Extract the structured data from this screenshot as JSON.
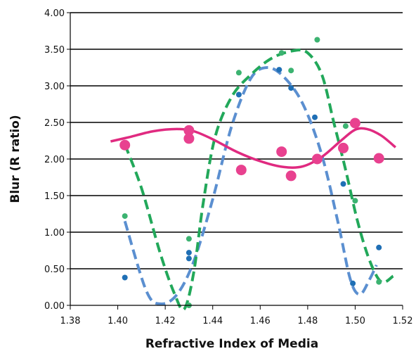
{
  "chart_data": {
    "type": "scatter",
    "xlabel": "Refractive Index of Media",
    "ylabel": "Blur (R ratio)",
    "xlim": [
      1.38,
      1.52
    ],
    "ylim": [
      0.0,
      4.0
    ],
    "x_ticks": [
      "1.38",
      "1.40",
      "1.42",
      "1.44",
      "1.46",
      "1.48",
      "1.50",
      "1.52"
    ],
    "y_ticks": [
      "0.00",
      "0.50",
      "1.00",
      "1.50",
      "2.00",
      "2.50",
      "3.00",
      "3.50",
      "4.00"
    ],
    "grid": "horizontal",
    "legend": "none",
    "series": [
      {
        "color": "#1f6fb5",
        "marker": "small-circle",
        "trendline": "dashed",
        "trend_color": "#5b8fd0",
        "points": [
          {
            "x": 1.403,
            "y": 0.38
          },
          {
            "x": 1.43,
            "y": 0.72
          },
          {
            "x": 1.43,
            "y": 0.64
          },
          {
            "x": 1.451,
            "y": 2.88
          },
          {
            "x": 1.468,
            "y": 3.22
          },
          {
            "x": 1.473,
            "y": 2.97
          },
          {
            "x": 1.483,
            "y": 2.57
          },
          {
            "x": 1.495,
            "y": 1.66
          },
          {
            "x": 1.499,
            "y": 0.3
          },
          {
            "x": 1.51,
            "y": 0.79
          }
        ],
        "trend_points": [
          {
            "x": 1.403,
            "y": 1.15
          },
          {
            "x": 1.412,
            "y": 0.2
          },
          {
            "x": 1.418,
            "y": 0.02
          },
          {
            "x": 1.425,
            "y": 0.15
          },
          {
            "x": 1.432,
            "y": 0.6
          },
          {
            "x": 1.44,
            "y": 1.45
          },
          {
            "x": 1.448,
            "y": 2.45
          },
          {
            "x": 1.456,
            "y": 3.1
          },
          {
            "x": 1.463,
            "y": 3.25
          },
          {
            "x": 1.47,
            "y": 3.12
          },
          {
            "x": 1.478,
            "y": 2.75
          },
          {
            "x": 1.486,
            "y": 2.05
          },
          {
            "x": 1.493,
            "y": 1.1
          },
          {
            "x": 1.498,
            "y": 0.35
          },
          {
            "x": 1.502,
            "y": 0.15
          },
          {
            "x": 1.506,
            "y": 0.35
          },
          {
            "x": 1.509,
            "y": 0.55
          }
        ]
      },
      {
        "color": "#3cb371",
        "marker": "small-circle",
        "trendline": "dashed",
        "trend_color": "#22a85a",
        "points": [
          {
            "x": 1.403,
            "y": 1.22
          },
          {
            "x": 1.43,
            "y": 0.91
          },
          {
            "x": 1.43,
            "y": 0.0
          },
          {
            "x": 1.451,
            "y": 3.18
          },
          {
            "x": 1.469,
            "y": 3.45
          },
          {
            "x": 1.473,
            "y": 3.21
          },
          {
            "x": 1.484,
            "y": 3.63
          },
          {
            "x": 1.496,
            "y": 2.45
          },
          {
            "x": 1.5,
            "y": 1.43
          },
          {
            "x": 1.51,
            "y": 0.32
          }
        ],
        "trend_points": [
          {
            "x": 1.403,
            "y": 2.2
          },
          {
            "x": 1.41,
            "y": 1.6
          },
          {
            "x": 1.418,
            "y": 0.7
          },
          {
            "x": 1.424,
            "y": 0.15
          },
          {
            "x": 1.428,
            "y": -0.05
          },
          {
            "x": 1.432,
            "y": 0.45
          },
          {
            "x": 1.436,
            "y": 1.4
          },
          {
            "x": 1.441,
            "y": 2.3
          },
          {
            "x": 1.448,
            "y": 2.85
          },
          {
            "x": 1.456,
            "y": 3.15
          },
          {
            "x": 1.465,
            "y": 3.38
          },
          {
            "x": 1.474,
            "y": 3.48
          },
          {
            "x": 1.48,
            "y": 3.45
          },
          {
            "x": 1.486,
            "y": 3.15
          },
          {
            "x": 1.491,
            "y": 2.5
          },
          {
            "x": 1.496,
            "y": 1.85
          },
          {
            "x": 1.501,
            "y": 1.15
          },
          {
            "x": 1.506,
            "y": 0.62
          },
          {
            "x": 1.511,
            "y": 0.32
          },
          {
            "x": 1.516,
            "y": 0.4
          }
        ]
      },
      {
        "color": "#e8418f",
        "marker": "large-circle",
        "trendline": "solid",
        "trend_color": "#e02a80",
        "points": [
          {
            "x": 1.403,
            "y": 2.19
          },
          {
            "x": 1.43,
            "y": 2.39
          },
          {
            "x": 1.43,
            "y": 2.28
          },
          {
            "x": 1.452,
            "y": 1.85
          },
          {
            "x": 1.469,
            "y": 2.1
          },
          {
            "x": 1.473,
            "y": 1.77
          },
          {
            "x": 1.484,
            "y": 2.0
          },
          {
            "x": 1.495,
            "y": 2.15
          },
          {
            "x": 1.5,
            "y": 2.49
          },
          {
            "x": 1.51,
            "y": 2.01
          }
        ],
        "trend_points": [
          {
            "x": 1.397,
            "y": 2.24
          },
          {
            "x": 1.405,
            "y": 2.3
          },
          {
            "x": 1.415,
            "y": 2.38
          },
          {
            "x": 1.425,
            "y": 2.41
          },
          {
            "x": 1.432,
            "y": 2.38
          },
          {
            "x": 1.44,
            "y": 2.27
          },
          {
            "x": 1.45,
            "y": 2.1
          },
          {
            "x": 1.46,
            "y": 1.97
          },
          {
            "x": 1.47,
            "y": 1.89
          },
          {
            "x": 1.478,
            "y": 1.9
          },
          {
            "x": 1.486,
            "y": 2.03
          },
          {
            "x": 1.494,
            "y": 2.25
          },
          {
            "x": 1.5,
            "y": 2.4
          },
          {
            "x": 1.505,
            "y": 2.41
          },
          {
            "x": 1.511,
            "y": 2.32
          },
          {
            "x": 1.517,
            "y": 2.16
          }
        ]
      }
    ]
  }
}
